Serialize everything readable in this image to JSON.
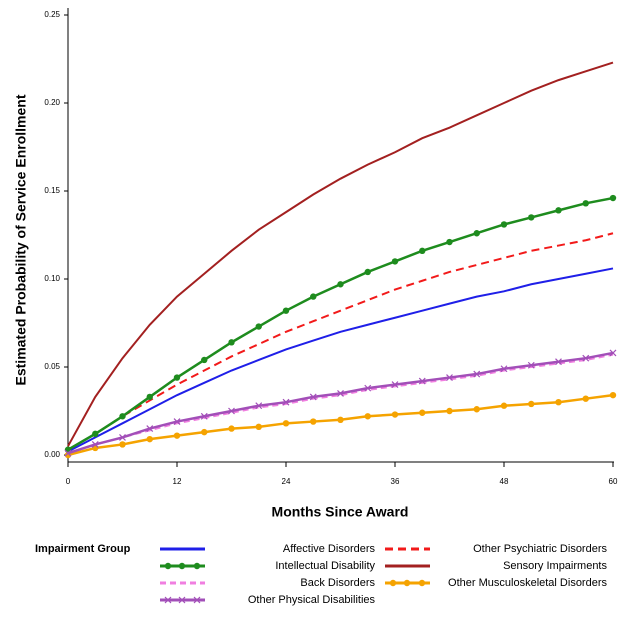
{
  "chart_data": {
    "type": "line",
    "x_label": "Months Since Award",
    "y_label": "Estimated Probability of Service Enrollment",
    "legend_title": "Impairment Group",
    "x": [
      0,
      3,
      6,
      9,
      12,
      15,
      18,
      21,
      24,
      27,
      30,
      33,
      36,
      39,
      42,
      45,
      48,
      51,
      54,
      57,
      60
    ],
    "xlim": [
      0,
      60
    ],
    "xticks": [
      0,
      12,
      24,
      36,
      48,
      60
    ],
    "ylim": [
      0,
      0.25
    ],
    "yticks": [
      {
        "value": 0,
        "label": "0.00"
      },
      {
        "value": 0.05,
        "label": "0.05"
      },
      {
        "value": 0.1,
        "label": "0.10"
      },
      {
        "value": 0.15,
        "label": "0.15"
      },
      {
        "value": 0.2,
        "label": "0.20"
      },
      {
        "value": 0.25,
        "label": "0.25"
      }
    ],
    "series": [
      {
        "name": "Affective Disorders",
        "color": "#1f1fe8",
        "dash": "none",
        "marker": "none",
        "values": [
          0.002,
          0.01,
          0.018,
          0.026,
          0.034,
          0.041,
          0.048,
          0.054,
          0.06,
          0.065,
          0.07,
          0.074,
          0.078,
          0.082,
          0.086,
          0.09,
          0.093,
          0.097,
          0.1,
          0.103,
          0.106
        ]
      },
      {
        "name": "Other Psychiatric Disorders",
        "color": "#f21a1a",
        "dash": "8,5",
        "marker": "none",
        "values": [
          0.003,
          0.012,
          0.022,
          0.031,
          0.04,
          0.048,
          0.056,
          0.063,
          0.07,
          0.076,
          0.082,
          0.088,
          0.094,
          0.099,
          0.104,
          0.108,
          0.112,
          0.116,
          0.119,
          0.122,
          0.126
        ]
      },
      {
        "name": "Intellectual Disability",
        "color": "#1e8c1e",
        "dash": "none",
        "marker": "circle",
        "values": [
          0.003,
          0.012,
          0.022,
          0.033,
          0.044,
          0.054,
          0.064,
          0.073,
          0.082,
          0.09,
          0.097,
          0.104,
          0.11,
          0.116,
          0.121,
          0.126,
          0.131,
          0.135,
          0.139,
          0.143,
          0.146
        ]
      },
      {
        "name": "Sensory Impairments",
        "color": "#a32020",
        "dash": "none",
        "marker": "none",
        "values": [
          0.005,
          0.033,
          0.055,
          0.074,
          0.09,
          0.103,
          0.116,
          0.128,
          0.138,
          0.148,
          0.157,
          0.165,
          0.172,
          0.18,
          0.186,
          0.193,
          0.2,
          0.207,
          0.213,
          0.218,
          0.223
        ]
      },
      {
        "name": "Back Disorders",
        "color": "#f07ee0",
        "dash": "6,4",
        "marker": "none",
        "values": [
          0.001,
          0.006,
          0.01,
          0.014,
          0.018,
          0.021,
          0.024,
          0.027,
          0.029,
          0.032,
          0.034,
          0.037,
          0.039,
          0.041,
          0.043,
          0.045,
          0.048,
          0.05,
          0.052,
          0.054,
          0.057
        ]
      },
      {
        "name": "Other Musculoskeletal Disorders",
        "color": "#f5a300",
        "dash": "none",
        "marker": "circle",
        "values": [
          0.0,
          0.004,
          0.006,
          0.009,
          0.011,
          0.013,
          0.015,
          0.016,
          0.018,
          0.019,
          0.02,
          0.022,
          0.023,
          0.024,
          0.025,
          0.026,
          0.028,
          0.029,
          0.03,
          0.032,
          0.034
        ]
      },
      {
        "name": "Other Physical Disabilities",
        "color": "#a24fb8",
        "dash": "none",
        "marker": "x",
        "values": [
          0.001,
          0.006,
          0.01,
          0.015,
          0.019,
          0.022,
          0.025,
          0.028,
          0.03,
          0.033,
          0.035,
          0.038,
          0.04,
          0.042,
          0.044,
          0.046,
          0.049,
          0.051,
          0.053,
          0.055,
          0.058
        ]
      }
    ]
  }
}
